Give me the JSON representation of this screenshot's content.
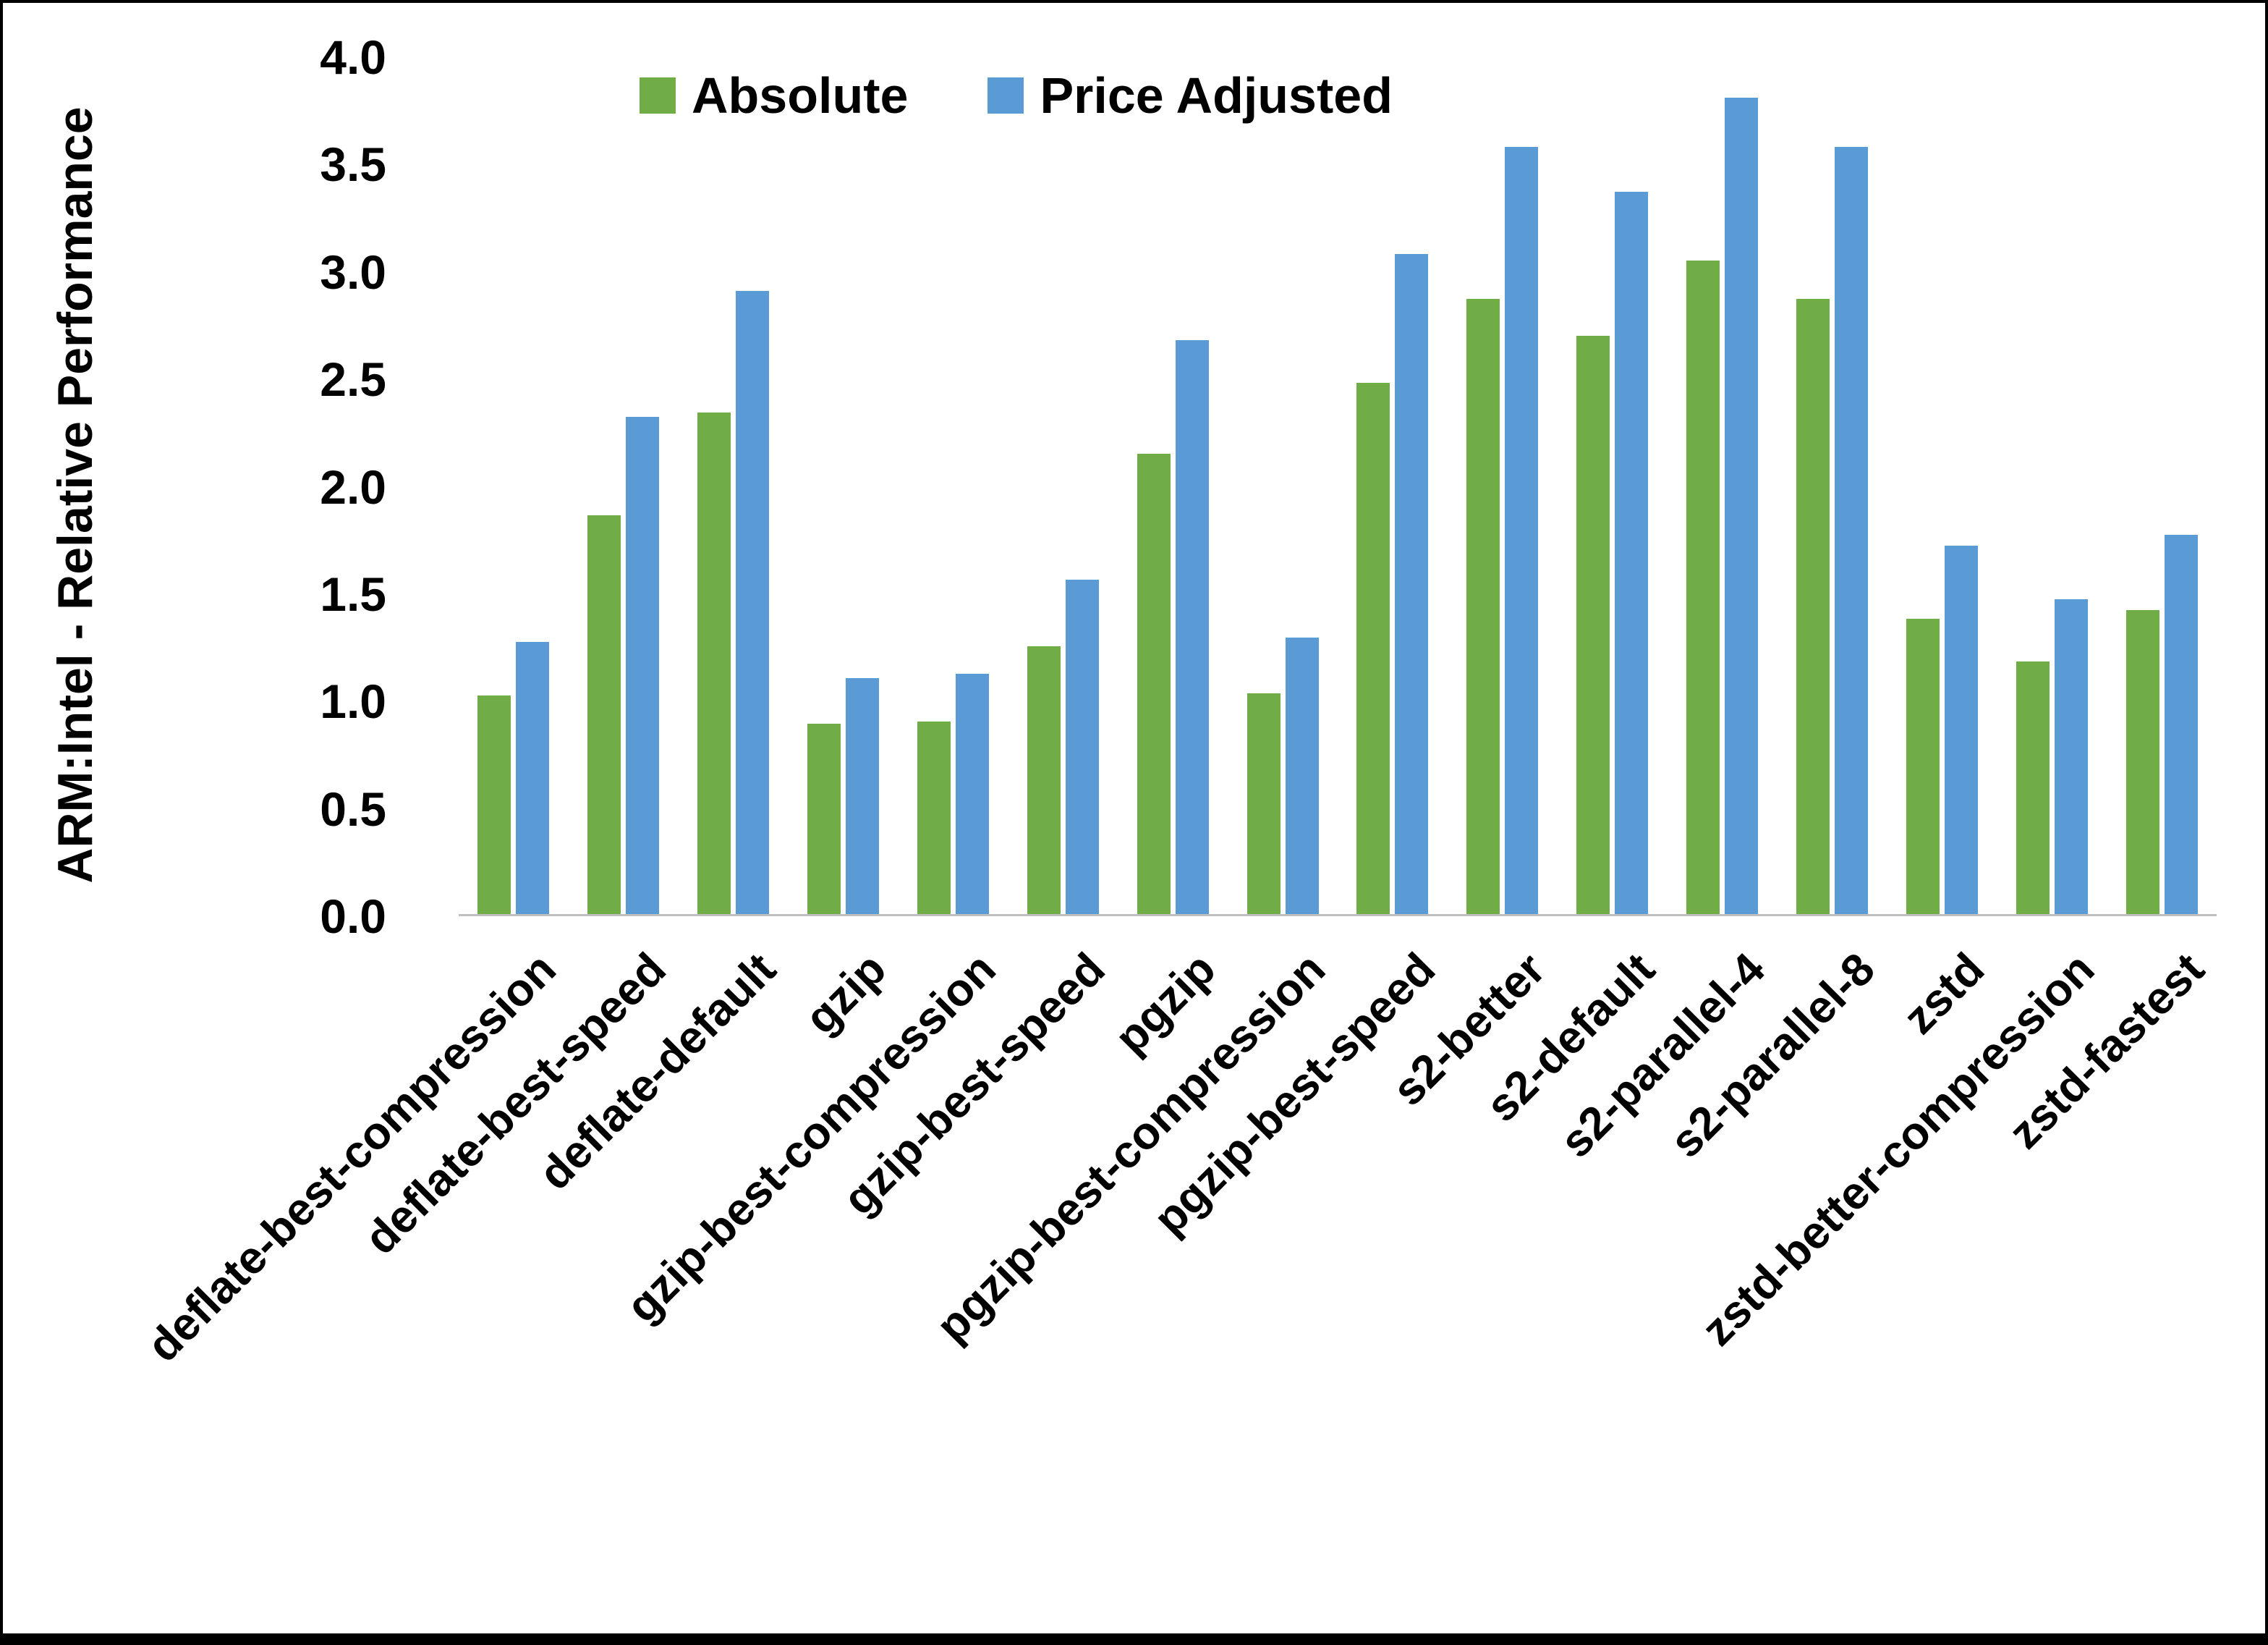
{
  "chart_data": {
    "type": "bar",
    "title": "",
    "ylabel": "ARM:Intel - Relative Performance",
    "xlabel": "",
    "ylim": [
      0.0,
      4.0
    ],
    "yticks": [
      0.0,
      0.5,
      1.0,
      1.5,
      2.0,
      2.5,
      3.0,
      3.5,
      4.0
    ],
    "grid": false,
    "legend_position": "top",
    "categories": [
      "deflate-best-compression",
      "deflate-best-speed",
      "deflate-default",
      "gzip",
      "gzip-best-compression",
      "gzip-best-speed",
      "pgzip",
      "pgzip-best-compression",
      "pgzip-best-speed",
      "s2-better",
      "s2-default",
      "s2-parallel-4",
      "s2-parallel-8",
      "zstd",
      "zstd-better-compression",
      "zstd-fastest"
    ],
    "series": [
      {
        "name": "Absolute",
        "color": "#70AD47",
        "values": [
          1.02,
          1.86,
          2.34,
          0.89,
          0.9,
          1.25,
          2.15,
          1.03,
          2.48,
          2.87,
          2.7,
          3.05,
          2.87,
          1.38,
          1.18,
          1.42
        ]
      },
      {
        "name": "Price Adjusted",
        "color": "#5B9BD5",
        "values": [
          1.27,
          2.32,
          2.91,
          1.1,
          1.12,
          1.56,
          2.68,
          1.29,
          3.08,
          3.58,
          3.37,
          3.81,
          3.58,
          1.72,
          1.47,
          1.77
        ]
      }
    ]
  }
}
